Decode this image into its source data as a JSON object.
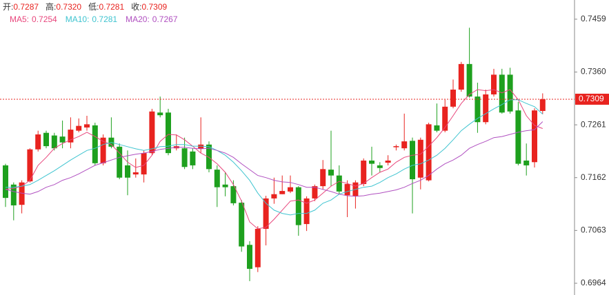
{
  "chart_data": {
    "type": "candlestick",
    "header": [
      {
        "label": "开:",
        "value": "0.7287"
      },
      {
        "label": "高:",
        "value": "0.7320"
      },
      {
        "label": "低:",
        "value": "0.7281"
      },
      {
        "label": "收:",
        "value": "0.7309"
      }
    ],
    "up_color": "#e8231f",
    "down_color": "#1ea01e",
    "open": [
      0.7185,
      0.7149,
      0.7111,
      0.7155,
      0.7215,
      0.7246,
      0.7241,
      0.7239,
      0.7228,
      0.725,
      0.7256,
      0.726,
      0.7189,
      0.7237,
      0.722,
      0.7185,
      0.7168,
      0.7168,
      0.7208,
      0.7284,
      0.7284,
      0.7217,
      0.7217,
      0.7211,
      0.7216,
      0.7224,
      0.7177,
      0.7149,
      0.7146,
      0.7115,
      0.7036,
      0.6994,
      0.7066,
      0.7123,
      0.7131,
      0.7136,
      0.7144,
      0.7075,
      0.7123,
      0.7146,
      0.7177,
      0.7166,
      0.7129,
      0.7127,
      0.715,
      0.7194,
      0.7185,
      0.719,
      0.7219,
      0.7217,
      0.7231,
      0.7162,
      0.7157,
      0.726,
      0.725,
      0.7295,
      0.7327,
      0.7375,
      0.7314,
      0.7266,
      0.7318,
      0.7355,
      0.7355,
      0.7288,
      0.7194,
      0.7191,
      0.7287
    ],
    "high": [
      0.7188,
      0.7153,
      0.7157,
      0.7217,
      0.725,
      0.725,
      0.7246,
      0.7269,
      0.7275,
      0.7273,
      0.7278,
      0.7265,
      0.7243,
      0.7275,
      0.7226,
      0.7213,
      0.7198,
      0.7213,
      0.7291,
      0.7314,
      0.7291,
      0.7243,
      0.7237,
      0.7217,
      0.7275,
      0.723,
      0.7185,
      0.7172,
      0.7157,
      0.712,
      0.7043,
      0.7071,
      0.7128,
      0.7162,
      0.7166,
      0.7166,
      0.7146,
      0.7127,
      0.7149,
      0.7195,
      0.725,
      0.7185,
      0.7157,
      0.7157,
      0.7198,
      0.722,
      0.7191,
      0.7204,
      0.7224,
      0.7282,
      0.7237,
      0.7237,
      0.7265,
      0.7301,
      0.7308,
      0.7346,
      0.7379,
      0.7443,
      0.734,
      0.7327,
      0.7366,
      0.7366,
      0.7368,
      0.7304,
      0.7226,
      0.7292,
      0.732
    ],
    "low": [
      0.7107,
      0.7082,
      0.7095,
      0.7153,
      0.7211,
      0.7217,
      0.7213,
      0.7217,
      0.7217,
      0.7247,
      0.725,
      0.7185,
      0.7185,
      0.7217,
      0.7159,
      0.7129,
      0.7162,
      0.7153,
      0.7204,
      0.7275,
      0.7204,
      0.7213,
      0.7178,
      0.7178,
      0.7208,
      0.7172,
      0.7107,
      0.7127,
      0.711,
      0.7023,
      0.6968,
      0.6985,
      0.7035,
      0.7113,
      0.7131,
      0.7133,
      0.7053,
      0.7062,
      0.7118,
      0.714,
      0.7146,
      0.7131,
      0.7088,
      0.7104,
      0.7146,
      0.7166,
      0.7172,
      0.7185,
      0.7213,
      0.7213,
      0.7095,
      0.714,
      0.7155,
      0.7247,
      0.7247,
      0.7292,
      0.7323,
      0.7312,
      0.7246,
      0.7262,
      0.7314,
      0.7282,
      0.7282,
      0.7185,
      0.7166,
      0.7181,
      0.7281
    ],
    "close": [
      0.7124,
      0.711,
      0.7153,
      0.7215,
      0.7243,
      0.7221,
      0.7217,
      0.7228,
      0.7252,
      0.7259,
      0.7262,
      0.7189,
      0.7237,
      0.722,
      0.7162,
      0.7162,
      0.7172,
      0.7208,
      0.7286,
      0.7279,
      0.7208,
      0.7221,
      0.7182,
      0.7185,
      0.7224,
      0.7178,
      0.7144,
      0.7144,
      0.7114,
      0.7033,
      0.6991,
      0.7066,
      0.7123,
      0.7131,
      0.7137,
      0.7144,
      0.7073,
      0.7123,
      0.7146,
      0.7178,
      0.7166,
      0.7136,
      0.715,
      0.7153,
      0.7194,
      0.7188,
      0.718,
      0.7194,
      0.7221,
      0.723,
      0.7159,
      0.7233,
      0.7262,
      0.725,
      0.7295,
      0.7327,
      0.7375,
      0.7314,
      0.7266,
      0.7318,
      0.7355,
      0.7284,
      0.7286,
      0.7188,
      0.7185,
      0.7288,
      0.7309
    ],
    "series": [
      {
        "name": "MA5:",
        "color": "#e8467c",
        "values": [
          0.714,
          0.7142,
          0.7146,
          0.7157,
          0.7185,
          0.72,
          0.7217,
          0.7226,
          0.7233,
          0.7239,
          0.7247,
          0.7239,
          0.723,
          0.7224,
          0.7208,
          0.7191,
          0.7181,
          0.7185,
          0.7204,
          0.723,
          0.7243,
          0.7242,
          0.7233,
          0.7221,
          0.7208,
          0.72,
          0.7188,
          0.7172,
          0.7149,
          0.7118,
          0.7079,
          0.7066,
          0.7069,
          0.7084,
          0.7101,
          0.7118,
          0.712,
          0.7114,
          0.712,
          0.7133,
          0.7146,
          0.7155,
          0.7151,
          0.7146,
          0.7151,
          0.7162,
          0.7172,
          0.7178,
          0.7191,
          0.72,
          0.7204,
          0.7206,
          0.7221,
          0.7237,
          0.7256,
          0.7278,
          0.7301,
          0.7318,
          0.7327,
          0.7325,
          0.7327,
          0.7321,
          0.7327,
          0.7308,
          0.7278,
          0.726,
          0.7254
        ]
      },
      {
        "name": "MA10:",
        "color": "#3fc4d0",
        "values": [
          0.7144,
          0.7144,
          0.7146,
          0.7149,
          0.7157,
          0.7166,
          0.7175,
          0.7185,
          0.7195,
          0.7204,
          0.7213,
          0.7217,
          0.7224,
          0.7228,
          0.7224,
          0.722,
          0.7216,
          0.7213,
          0.7216,
          0.722,
          0.7221,
          0.7224,
          0.7224,
          0.7221,
          0.7221,
          0.722,
          0.7213,
          0.7204,
          0.7191,
          0.7175,
          0.7157,
          0.7133,
          0.7114,
          0.7101,
          0.7095,
          0.7092,
          0.7095,
          0.7095,
          0.7101,
          0.7114,
          0.712,
          0.7131,
          0.7136,
          0.714,
          0.7144,
          0.7146,
          0.7153,
          0.7162,
          0.7169,
          0.7178,
          0.7185,
          0.7188,
          0.7195,
          0.7204,
          0.7217,
          0.7233,
          0.725,
          0.7262,
          0.7273,
          0.7282,
          0.7291,
          0.7299,
          0.7308,
          0.7308,
          0.7301,
          0.7295,
          0.7281
        ]
      },
      {
        "name": "MA20:",
        "color": "#b04fc0",
        "values": [
          0.714,
          0.7136,
          0.7133,
          0.7131,
          0.7136,
          0.7144,
          0.7149,
          0.7157,
          0.7162,
          0.7169,
          0.7177,
          0.7185,
          0.719,
          0.7195,
          0.72,
          0.7203,
          0.7206,
          0.7208,
          0.7211,
          0.7215,
          0.7217,
          0.7219,
          0.7219,
          0.7217,
          0.7216,
          0.7217,
          0.7213,
          0.7208,
          0.72,
          0.7188,
          0.7177,
          0.7166,
          0.7162,
          0.7157,
          0.7154,
          0.7153,
          0.7149,
          0.7144,
          0.7144,
          0.714,
          0.7136,
          0.7131,
          0.7128,
          0.7127,
          0.7128,
          0.7131,
          0.7133,
          0.7136,
          0.7139,
          0.7144,
          0.7151,
          0.7157,
          0.7166,
          0.7178,
          0.7188,
          0.7195,
          0.7204,
          0.7217,
          0.7224,
          0.723,
          0.7237,
          0.7239,
          0.7243,
          0.7247,
          0.725,
          0.7252,
          0.7267
        ]
      }
    ],
    "ylim": [
      0.6942,
      0.7495
    ],
    "yticks": [
      0.6964,
      0.7063,
      0.7162,
      0.7261,
      0.736,
      0.7459
    ],
    "ytick_labels": [
      "0.6964",
      "0.7063",
      "0.7162",
      "0.7261",
      "0.7360",
      "0.7459"
    ],
    "last_price_color": "#e8231f"
  }
}
